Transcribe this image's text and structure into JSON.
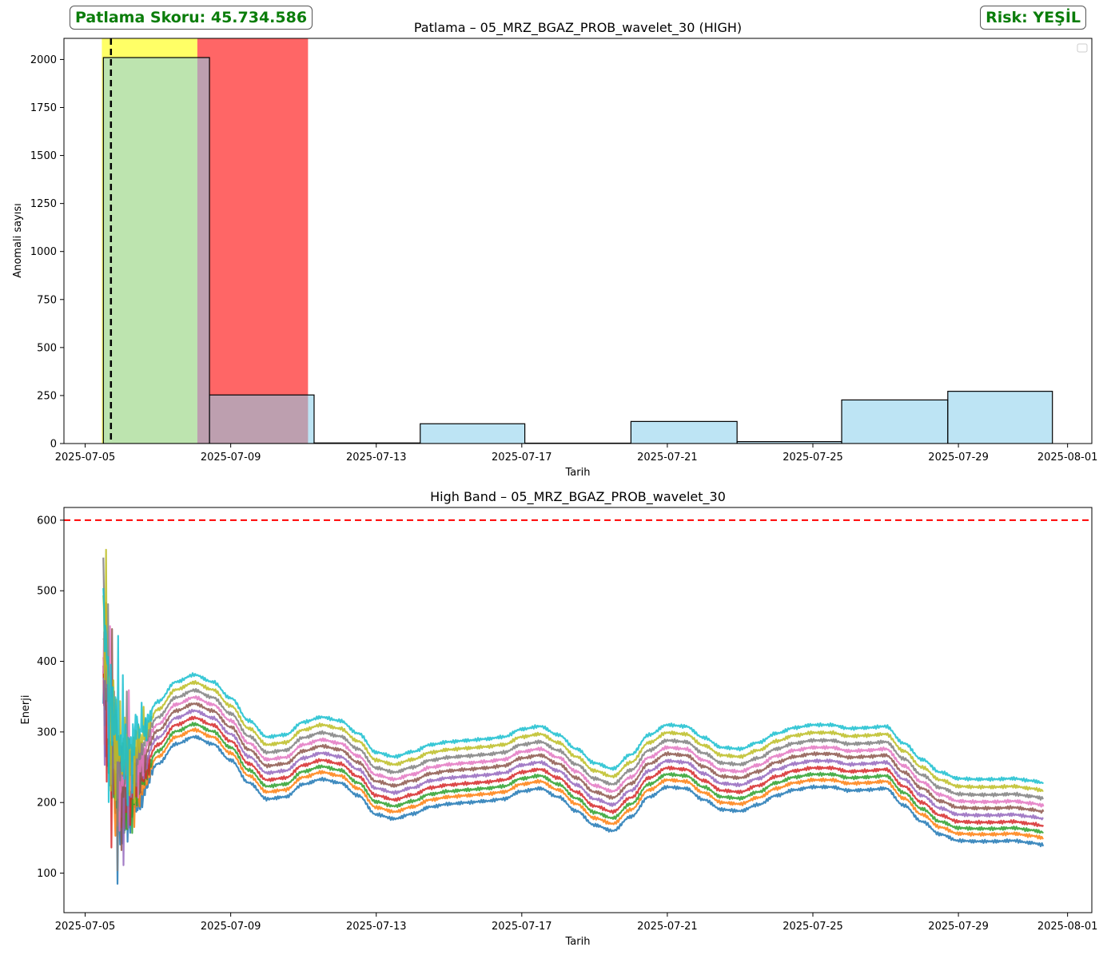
{
  "badges": {
    "score": "Patlama Skoru: 45.734.586",
    "risk": "Risk: YEŞİL",
    "color": "#0b7d0b"
  },
  "chart_data": [
    {
      "type": "bar",
      "title": "Patlama – 05_MRZ_BGAZ_PROB_wavelet_30 (HIGH)",
      "xlabel": "Tarih",
      "ylabel": "Anomali sayısı",
      "x_tick_labels": [
        "2025-07-05",
        "2025-07-09",
        "2025-07-13",
        "2025-07-17",
        "2025-07-21",
        "2025-07-25",
        "2025-07-29",
        "2025-08-01"
      ],
      "y_tick_labels": [
        "0",
        "250",
        "500",
        "750",
        "1000",
        "1250",
        "1500",
        "1750",
        "2000"
      ],
      "xlim": [
        "2025-07-04T10:00",
        "2025-08-01T16:00"
      ],
      "ylim": [
        0,
        2110
      ],
      "bins": [
        {
          "start": "2025-07-05T12:00",
          "end": "2025-07-08T10:00",
          "count": 2010
        },
        {
          "start": "2025-07-08T10:00",
          "end": "2025-07-11T07:00",
          "count": 253
        },
        {
          "start": "2025-07-11T07:00",
          "end": "2025-07-14T05:00",
          "count": 3
        },
        {
          "start": "2025-07-14T05:00",
          "end": "2025-07-17T02:00",
          "count": 103
        },
        {
          "start": "2025-07-17T02:00",
          "end": "2025-07-20T00:00",
          "count": 2
        },
        {
          "start": "2025-07-20T00:00",
          "end": "2025-07-22T22:00",
          "count": 115
        },
        {
          "start": "2025-07-22T22:00",
          "end": "2025-07-25T19:00",
          "count": 10
        },
        {
          "start": "2025-07-25T19:00",
          "end": "2025-07-28T17:00",
          "count": 227
        },
        {
          "start": "2025-07-28T17:00",
          "end": "2025-07-31T14:00",
          "count": 272
        }
      ],
      "bar_color": "#87ceeb",
      "shaded_spans": [
        {
          "start": "2025-07-05T11:00",
          "end": "2025-07-08T02:00",
          "color": "#ffff00",
          "alpha": 0.6
        },
        {
          "start": "2025-07-08T02:00",
          "end": "2025-07-11T03:00",
          "color": "#ff0000",
          "alpha": 0.6
        }
      ],
      "vline": {
        "x": "2025-07-05T17:00",
        "style": "dashed",
        "color": "#000000"
      },
      "legend": "top-right (empty)"
    },
    {
      "type": "line",
      "title": "High Band – 05_MRZ_BGAZ_PROB_wavelet_30",
      "xlabel": "Tarih",
      "ylabel": "Enerji",
      "x_tick_labels": [
        "2025-07-05",
        "2025-07-09",
        "2025-07-13",
        "2025-07-17",
        "2025-07-21",
        "2025-07-25",
        "2025-07-29",
        "2025-08-01"
      ],
      "y_tick_labels": [
        "100",
        "200",
        "300",
        "400",
        "500",
        "600"
      ],
      "xlim": [
        "2025-07-04T10:00",
        "2025-08-01T16:00"
      ],
      "ylim": [
        44,
        618
      ],
      "threshold": {
        "y": 600,
        "color": "#ff0000",
        "style": "dashed"
      },
      "base_curve": [
        [
          "2025-07-05T12:00",
          340
        ],
        [
          "2025-07-05T18:00",
          230
        ],
        [
          "2025-07-06T00:00",
          170
        ],
        [
          "2025-07-06T12:00",
          205
        ],
        [
          "2025-07-07T00:00",
          255
        ],
        [
          "2025-07-07T12:00",
          283
        ],
        [
          "2025-07-08T00:00",
          293
        ],
        [
          "2025-07-08T12:00",
          283
        ],
        [
          "2025-07-09T00:00",
          260
        ],
        [
          "2025-07-09T12:00",
          228
        ],
        [
          "2025-07-10T00:00",
          205
        ],
        [
          "2025-07-10T12:00",
          208
        ],
        [
          "2025-07-11T00:00",
          226
        ],
        [
          "2025-07-11T12:00",
          233
        ],
        [
          "2025-07-12T00:00",
          228
        ],
        [
          "2025-07-12T12:00",
          210
        ],
        [
          "2025-07-13T00:00",
          183
        ],
        [
          "2025-07-13T12:00",
          177
        ],
        [
          "2025-07-14T00:00",
          184
        ],
        [
          "2025-07-14T12:00",
          194
        ],
        [
          "2025-07-15T00:00",
          198
        ],
        [
          "2025-07-15T12:00",
          200
        ],
        [
          "2025-07-16T00:00",
          202
        ],
        [
          "2025-07-16T12:00",
          205
        ],
        [
          "2025-07-17T00:00",
          216
        ],
        [
          "2025-07-17T12:00",
          220
        ],
        [
          "2025-07-18T00:00",
          208
        ],
        [
          "2025-07-18T12:00",
          188
        ],
        [
          "2025-07-19T00:00",
          168
        ],
        [
          "2025-07-19T12:00",
          160
        ],
        [
          "2025-07-20T00:00",
          180
        ],
        [
          "2025-07-20T12:00",
          208
        ],
        [
          "2025-07-21T00:00",
          222
        ],
        [
          "2025-07-21T12:00",
          220
        ],
        [
          "2025-07-22T00:00",
          204
        ],
        [
          "2025-07-22T12:00",
          190
        ],
        [
          "2025-07-23T00:00",
          188
        ],
        [
          "2025-07-23T12:00",
          197
        ],
        [
          "2025-07-24T00:00",
          210
        ],
        [
          "2025-07-24T12:00",
          218
        ],
        [
          "2025-07-25T00:00",
          222
        ],
        [
          "2025-07-25T12:00",
          222
        ],
        [
          "2025-07-26T00:00",
          217
        ],
        [
          "2025-07-26T12:00",
          218
        ],
        [
          "2025-07-27T00:00",
          220
        ],
        [
          "2025-07-27T12:00",
          196
        ],
        [
          "2025-07-28T00:00",
          173
        ],
        [
          "2025-07-28T12:00",
          155
        ],
        [
          "2025-07-29T00:00",
          146
        ],
        [
          "2025-07-29T12:00",
          145
        ],
        [
          "2025-07-30T00:00",
          145
        ],
        [
          "2025-07-30T12:00",
          146
        ],
        [
          "2025-07-31T00:00",
          143
        ],
        [
          "2025-07-31T08:00",
          140
        ]
      ],
      "series": [
        {
          "color": "#1f77b4",
          "offset": 0
        },
        {
          "color": "#ff7f0e",
          "offset": 10
        },
        {
          "color": "#2ca02c",
          "offset": 18
        },
        {
          "color": "#d62728",
          "offset": 27
        },
        {
          "color": "#9467bd",
          "offset": 37
        },
        {
          "color": "#8c564b",
          "offset": 47
        },
        {
          "color": "#e377c2",
          "offset": 56
        },
        {
          "color": "#7f7f7f",
          "offset": 66
        },
        {
          "color": "#bcbd22",
          "offset": 77
        },
        {
          "color": "#17becf",
          "offset": 88
        }
      ]
    }
  ]
}
